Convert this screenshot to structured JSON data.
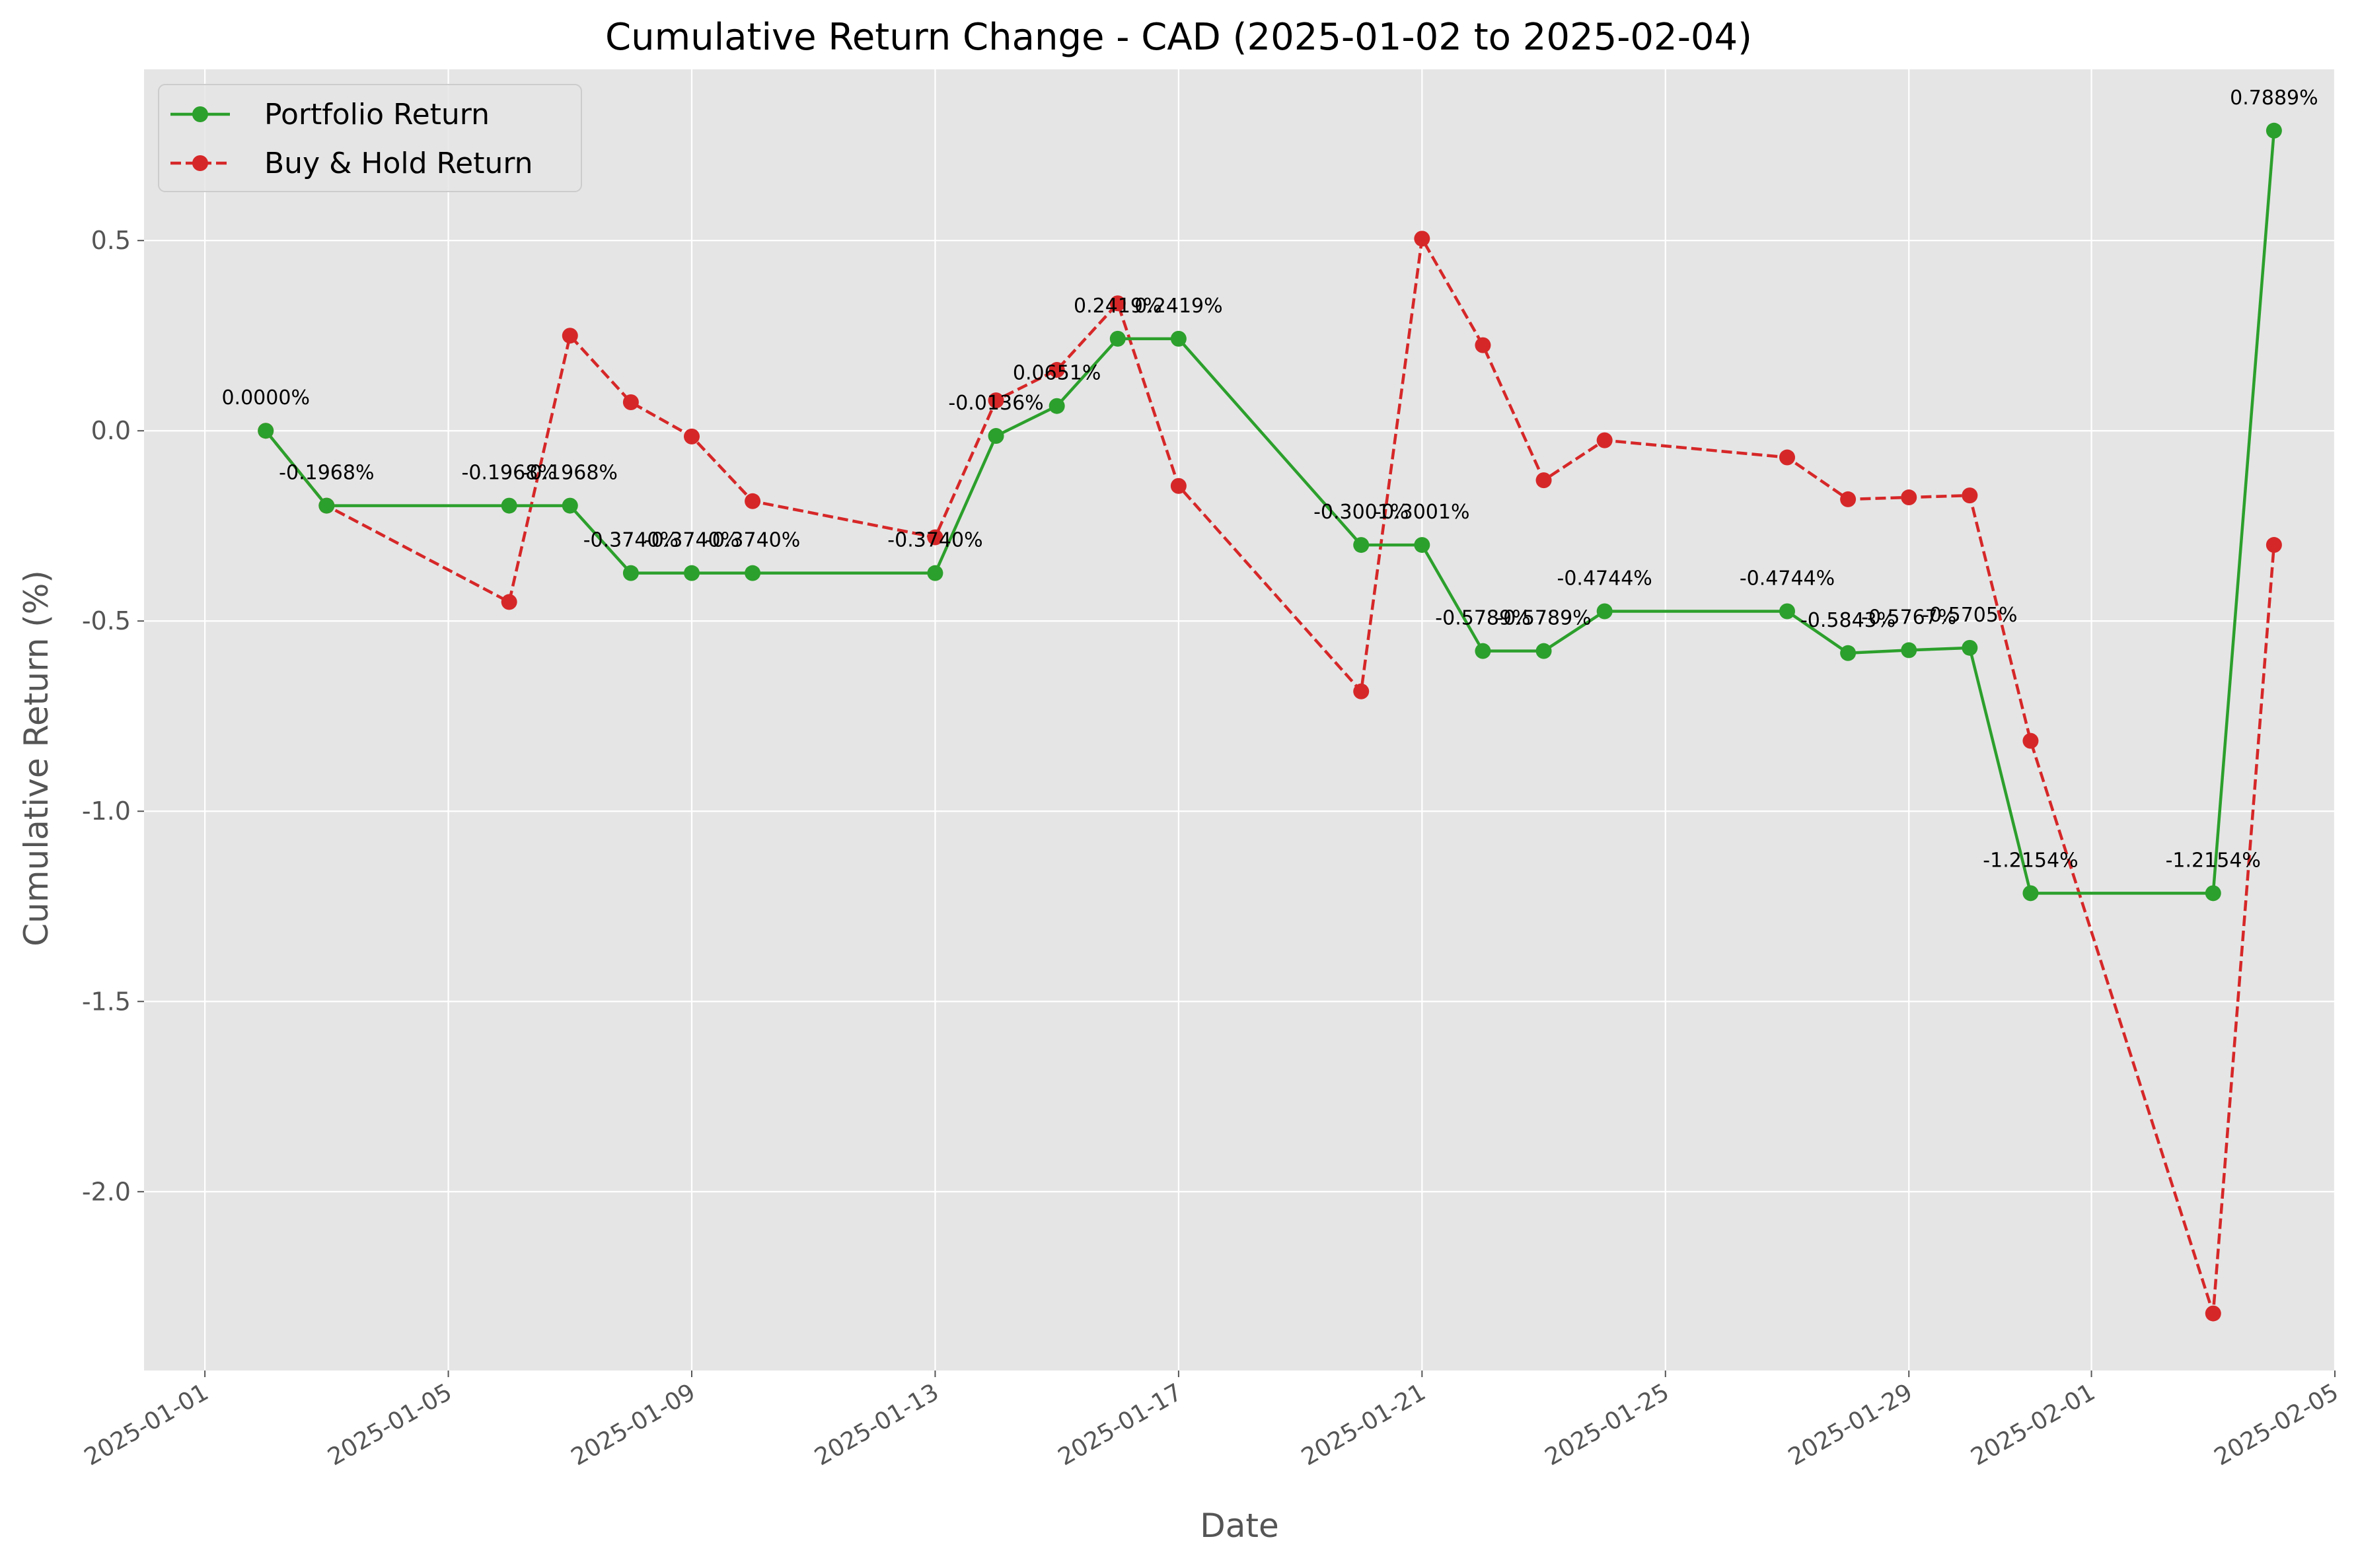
{
  "chart_data": {
    "type": "line",
    "title": "Cumulative Return Change - CAD (2025-01-02 to 2025-02-04)",
    "xlabel": "Date",
    "ylabel": "Cumulative Return (%)",
    "x_ticks": [
      "2025-01-01",
      "2025-01-05",
      "2025-01-09",
      "2025-01-13",
      "2025-01-17",
      "2025-01-21",
      "2025-01-25",
      "2025-01-29",
      "2025-02-01",
      "2025-02-05"
    ],
    "y_ticks": [
      0.5,
      0.0,
      -0.5,
      -1.0,
      -1.5,
      -2.0
    ],
    "y_tick_labels": [
      "0.5",
      "0.0",
      "-0.5",
      "-1.0",
      "-1.5",
      "-2.0"
    ],
    "xlim": [
      "2024-12-31",
      "2025-02-05"
    ],
    "ylim": [
      -2.47,
      0.95
    ],
    "grid": true,
    "legend_position": "top-left",
    "x": [
      "2025-01-02",
      "2025-01-03",
      "2025-01-06",
      "2025-01-07",
      "2025-01-08",
      "2025-01-09",
      "2025-01-10",
      "2025-01-13",
      "2025-01-14",
      "2025-01-15",
      "2025-01-16",
      "2025-01-17",
      "2025-01-20",
      "2025-01-21",
      "2025-01-22",
      "2025-01-23",
      "2025-01-24",
      "2025-01-27",
      "2025-01-28",
      "2025-01-29",
      "2025-01-30",
      "2025-01-31",
      "2025-02-03",
      "2025-02-04"
    ],
    "series": [
      {
        "name": "Portfolio Return",
        "color": "#2ca02c",
        "style": "solid",
        "values": [
          0.0,
          -0.1968,
          -0.1968,
          -0.1968,
          -0.374,
          -0.374,
          -0.374,
          -0.374,
          -0.0136,
          0.0651,
          0.2419,
          0.2419,
          -0.3001,
          -0.3001,
          -0.5789,
          -0.5789,
          -0.4744,
          -0.4744,
          -0.5843,
          -0.5767,
          -0.5705,
          -1.2154,
          -1.2154,
          0.7889
        ],
        "labels": [
          "0.0000%",
          "-0.1968%",
          "-0.1968%",
          "-0.1968%",
          "-0.3740%",
          "-0.3740%",
          "-0.3740%",
          "-0.3740%",
          "-0.0136%",
          "0.0651%",
          "0.2419%",
          "0.2419%",
          "-0.3001%",
          "-0.3001%",
          "-0.5789%",
          "-0.5789%",
          "-0.4744%",
          "-0.4744%",
          "-0.5843%",
          "-0.5767%",
          "-0.5705%",
          "-1.2154%",
          "-1.2154%",
          "0.7889%"
        ]
      },
      {
        "name": "Buy & Hold Return",
        "color": "#d62728",
        "style": "dashed",
        "values": [
          0.0,
          -0.1968,
          -0.45,
          0.25,
          0.075,
          -0.015,
          -0.185,
          -0.28,
          0.08,
          0.16,
          0.335,
          -0.145,
          -0.685,
          0.505,
          0.225,
          -0.13,
          -0.025,
          -0.07,
          -0.18,
          -0.175,
          -0.17,
          -0.815,
          -2.32,
          -0.3
        ]
      }
    ]
  }
}
